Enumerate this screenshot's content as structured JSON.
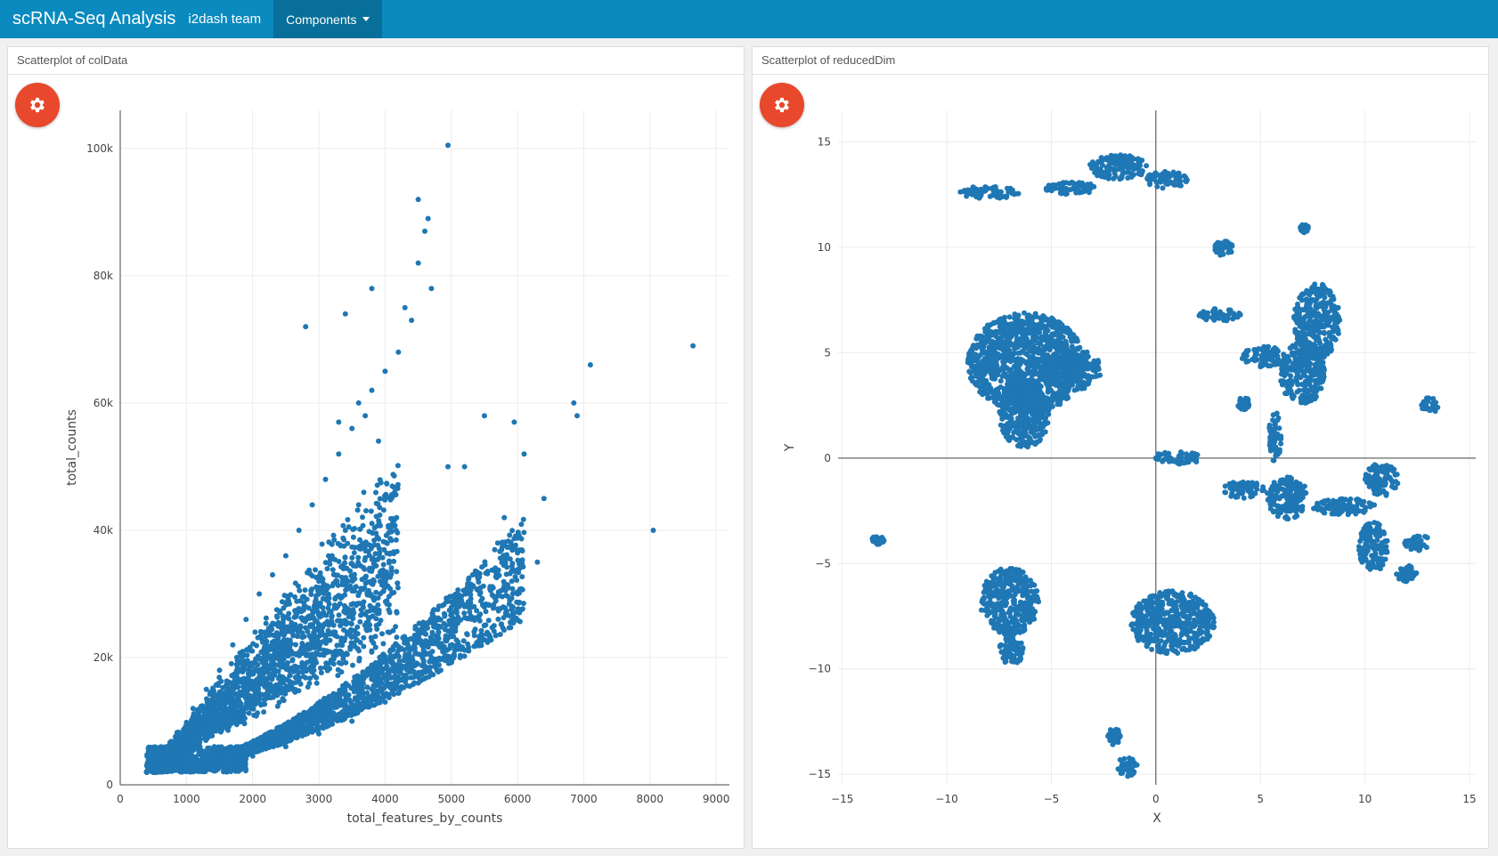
{
  "navbar": {
    "title": "scRNA-Seq Analysis",
    "team": "i2dash team",
    "menu_label": "Components",
    "background": "#0a8abf"
  },
  "panels": [
    {
      "title": "Scatterplot of colData",
      "settings_icon": "gear-icon",
      "chart_data": {
        "type": "scatter",
        "xlabel": "total_features_by_counts",
        "ylabel": "total_counts",
        "xlim": [
          0,
          9200
        ],
        "ylim": [
          0,
          106000
        ],
        "x_ticks": [
          0,
          1000,
          2000,
          3000,
          4000,
          5000,
          6000,
          7000,
          8000,
          9000
        ],
        "x_tick_labels": [
          "0",
          "1000",
          "2000",
          "3000",
          "4000",
          "5000",
          "6000",
          "7000",
          "8000",
          "9000"
        ],
        "y_ticks": [
          0,
          20000,
          40000,
          60000,
          80000,
          100000
        ],
        "y_tick_labels": [
          "0",
          "20k",
          "40k",
          "60k",
          "80k",
          "100k"
        ],
        "grid": true,
        "color": "#1f77b4",
        "series": [
          {
            "points": [
              [
                400,
                3000
              ],
              [
                500,
                4000
              ],
              [
                700,
                5500
              ],
              [
                900,
                8000
              ],
              [
                1100,
                12000
              ],
              [
                1300,
                15000
              ],
              [
                1500,
                18000
              ],
              [
                1700,
                22000
              ],
              [
                1900,
                26000
              ],
              [
                2100,
                30000
              ],
              [
                2300,
                33000
              ],
              [
                2500,
                36000
              ],
              [
                2700,
                40000
              ],
              [
                2900,
                44000
              ],
              [
                3100,
                48000
              ],
              [
                3300,
                52000
              ],
              [
                3500,
                56000
              ],
              [
                3700,
                58000
              ],
              [
                3900,
                54000
              ],
              [
                800,
                4000
              ],
              [
                1000,
                6000
              ],
              [
                1200,
                8000
              ],
              [
                1400,
                10000
              ],
              [
                1600,
                11000
              ],
              [
                1800,
                13000
              ],
              [
                2000,
                15000
              ],
              [
                2200,
                18000
              ],
              [
                2400,
                20000
              ],
              [
                2600,
                24000
              ],
              [
                2800,
                28000
              ],
              [
                3000,
                32000
              ],
              [
                3200,
                36000
              ],
              [
                3400,
                40000
              ],
              [
                3600,
                44000
              ],
              [
                1000,
                3000
              ],
              [
                1500,
                3500
              ],
              [
                2000,
                4500
              ],
              [
                2500,
                6000
              ],
              [
                3000,
                8000
              ],
              [
                3500,
                10000
              ],
              [
                4000,
                13000
              ],
              [
                4500,
                16000
              ],
              [
                5000,
                20000
              ],
              [
                5500,
                25000
              ],
              [
                6000,
                30000
              ],
              [
                6300,
                35000
              ],
              [
                5200,
                28000
              ],
              [
                4800,
                22000
              ],
              [
                4200,
                18000
              ],
              [
                3800,
                15000
              ],
              [
                5800,
                42000
              ],
              [
                6100,
                52000
              ],
              [
                6400,
                45000
              ],
              [
                5700,
                38000
              ],
              [
                2800,
                72000
              ],
              [
                3400,
                74000
              ],
              [
                3800,
                78000
              ],
              [
                4300,
                75000
              ],
              [
                4400,
                73000
              ],
              [
                4200,
                68000
              ],
              [
                4000,
                65000
              ],
              [
                3800,
                62000
              ],
              [
                3600,
                60000
              ],
              [
                3300,
                57000
              ],
              [
                4500,
                92000
              ],
              [
                4650,
                89000
              ],
              [
                4600,
                87000
              ],
              [
                4500,
                82000
              ],
              [
                4700,
                78000
              ],
              [
                4950,
                100500
              ],
              [
                6850,
                60000
              ],
              [
                6900,
                58000
              ],
              [
                7100,
                66000
              ],
              [
                8050,
                40000
              ],
              [
                8650,
                69000
              ],
              [
                5500,
                58000
              ],
              [
                5950,
                57000
              ],
              [
                4950,
                50000
              ],
              [
                5200,
                50000
              ]
            ]
          }
        ]
      }
    },
    {
      "title": "Scatterplot of reducedDim",
      "settings_icon": "gear-icon",
      "chart_data": {
        "type": "scatter",
        "xlabel": "X",
        "ylabel": "Y",
        "xlim": [
          -15.2,
          15.3
        ],
        "ylim": [
          -15.5,
          16.5
        ],
        "x_ticks": [
          -15,
          -10,
          -5,
          0,
          5,
          10,
          15
        ],
        "x_tick_labels": [
          "−15",
          "−10",
          "−5",
          "0",
          "5",
          "10",
          "15"
        ],
        "y_ticks": [
          -15,
          -10,
          -5,
          0,
          5,
          10,
          15
        ],
        "y_tick_labels": [
          "−15",
          "−10",
          "−5",
          "0",
          "5",
          "10",
          "15"
        ],
        "grid": true,
        "zero_lines": true,
        "color": "#1f77b4",
        "clusters": [
          {
            "cx": -6.2,
            "cy": 4.5,
            "rx": 2.8,
            "ry": 2.4
          },
          {
            "cx": -6.3,
            "cy": 2.0,
            "rx": 1.2,
            "ry": 1.5
          },
          {
            "cx": -4.0,
            "cy": 4.2,
            "rx": 1.4,
            "ry": 1.0
          },
          {
            "cx": -7.0,
            "cy": -6.8,
            "rx": 1.4,
            "ry": 1.6
          },
          {
            "cx": -6.9,
            "cy": -9.0,
            "rx": 0.6,
            "ry": 0.8
          },
          {
            "cx": 0.8,
            "cy": -7.8,
            "rx": 2.0,
            "ry": 1.5
          },
          {
            "cx": 7.7,
            "cy": 6.5,
            "rx": 1.1,
            "ry": 1.8
          },
          {
            "cx": 7.0,
            "cy": 4.0,
            "rx": 1.1,
            "ry": 1.5
          },
          {
            "cx": 6.3,
            "cy": -1.9,
            "rx": 1.0,
            "ry": 1.0
          },
          {
            "cx": 10.4,
            "cy": -4.2,
            "rx": 0.7,
            "ry": 1.2
          },
          {
            "cx": -1.8,
            "cy": 13.8,
            "rx": 1.4,
            "ry": 0.6
          },
          {
            "cx": 0.5,
            "cy": 13.2,
            "rx": 1.0,
            "ry": 0.4
          },
          {
            "cx": -4.0,
            "cy": 12.8,
            "rx": 1.3,
            "ry": 0.3
          },
          {
            "cx": -8.0,
            "cy": 12.6,
            "rx": 1.5,
            "ry": 0.3
          },
          {
            "cx": 3.2,
            "cy": 10.0,
            "rx": 0.5,
            "ry": 0.4
          },
          {
            "cx": 5.2,
            "cy": 4.8,
            "rx": 1.1,
            "ry": 0.5
          },
          {
            "cx": 9.0,
            "cy": -2.3,
            "rx": 1.5,
            "ry": 0.4
          },
          {
            "cx": 10.8,
            "cy": -1.0,
            "rx": 0.8,
            "ry": 0.8
          },
          {
            "cx": 12.5,
            "cy": -4.0,
            "rx": 0.6,
            "ry": 0.4
          },
          {
            "cx": 12.0,
            "cy": -5.5,
            "rx": 0.5,
            "ry": 0.4
          },
          {
            "cx": 13.1,
            "cy": 2.5,
            "rx": 0.4,
            "ry": 0.4
          },
          {
            "cx": -1.4,
            "cy": -14.6,
            "rx": 0.5,
            "ry": 0.5
          },
          {
            "cx": -2.0,
            "cy": -13.2,
            "rx": 0.3,
            "ry": 0.4
          },
          {
            "cx": -13.3,
            "cy": -3.9,
            "rx": 0.3,
            "ry": 0.2
          },
          {
            "cx": 1.0,
            "cy": 0.0,
            "rx": 1.2,
            "ry": 0.3
          },
          {
            "cx": 4.2,
            "cy": -1.5,
            "rx": 1.0,
            "ry": 0.4
          },
          {
            "cx": 4.2,
            "cy": 2.6,
            "rx": 0.3,
            "ry": 0.3
          },
          {
            "cx": 3.0,
            "cy": 6.8,
            "rx": 1.1,
            "ry": 0.3
          },
          {
            "cx": 5.7,
            "cy": 1.0,
            "rx": 0.3,
            "ry": 1.2
          },
          {
            "cx": 7.1,
            "cy": 10.9,
            "rx": 0.2,
            "ry": 0.2
          }
        ]
      }
    }
  ]
}
